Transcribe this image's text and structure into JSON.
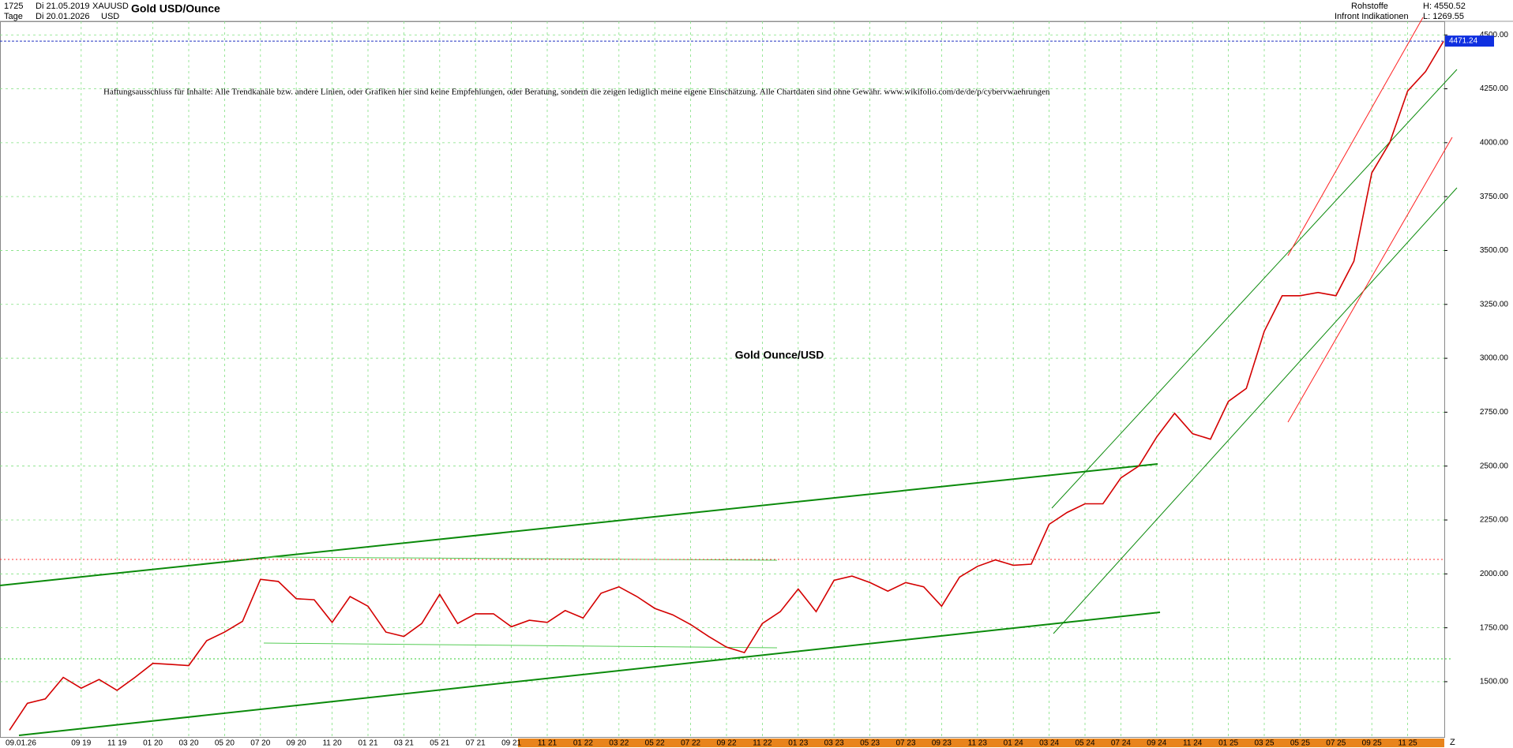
{
  "header": {
    "bars": "1725",
    "start": "Di 21.05.2019",
    "symbol": "XAUUSD",
    "period": "Tage",
    "end": "Di 20.01.2026",
    "currency": "USD",
    "title": "Gold USD/Ounce",
    "group": "Rohstoffe",
    "source": "Infront Indikationen",
    "high": "H: 4550.52",
    "low": "L: 1269.55"
  },
  "chart_data": {
    "type": "line",
    "title": "Gold Ounce/USD",
    "annotation": "Haftungsausschluss für Inhalte: Alle Trendkanäle bzw. andere Linien, oder Grafiken hier sind keine Empfehlungen, oder Beratung, sondern die zeigen lediglich meine eigene Einschätzung. Alle Chartdaten sind ohne Gewähr.  www.wikifolio.com/de/de/p/cybervwaehrungen",
    "cursor_label": "09.01.26",
    "corner_label": "Z",
    "last_price": 4471.24,
    "last_price_label": "4471.24",
    "categories": [
      null,
      null,
      null,
      null,
      "09 19",
      null,
      "11 19",
      null,
      "01 20",
      null,
      "03 20",
      null,
      "05 20",
      null,
      "07 20",
      null,
      "09 20",
      null,
      "11 20",
      null,
      "01 21",
      null,
      "03 21",
      null,
      "05 21",
      null,
      "07 21",
      null,
      "09 21",
      null,
      "11 21",
      null,
      "01 22",
      null,
      "03 22",
      null,
      "05 22",
      null,
      "07 22",
      null,
      "09 22",
      null,
      "11 22",
      null,
      "01 23",
      null,
      "03 23",
      null,
      "05 23",
      null,
      "07 23",
      null,
      "09 23",
      null,
      "11 23",
      null,
      "01 24",
      null,
      "03 24",
      null,
      "05 24",
      null,
      "07 24",
      null,
      "09 24",
      null,
      "11 24",
      null,
      "01 25",
      null,
      "03 25",
      null,
      "05 25",
      null,
      "07 25",
      null,
      "09 25",
      null,
      "11 25",
      null,
      null
    ],
    "series": [
      {
        "name": "XAUUSD",
        "color": "#d40000",
        "values": [
          1275,
          1400,
          1420,
          1520,
          1470,
          1510,
          1460,
          1520,
          1585,
          1580,
          1575,
          1690,
          1730,
          1780,
          1975,
          1965,
          1885,
          1880,
          1775,
          1895,
          1850,
          1730,
          1710,
          1770,
          1905,
          1770,
          1815,
          1815,
          1755,
          1785,
          1775,
          1830,
          1795,
          1910,
          1940,
          1895,
          1840,
          1810,
          1765,
          1710,
          1660,
          1635,
          1770,
          1825,
          1930,
          1825,
          1970,
          1990,
          1960,
          1920,
          1960,
          1940,
          1850,
          1985,
          2035,
          2065,
          2040,
          2045,
          2230,
          2285,
          2325,
          2325,
          2445,
          2500,
          2635,
          2745,
          2650,
          2625,
          2800,
          2860,
          3125,
          3290,
          3290,
          3305,
          3290,
          3450,
          3860,
          4000,
          4240,
          4330,
          4470
        ]
      }
    ],
    "ylim": [
      1240,
      4563
    ],
    "yticks": [
      {
        "value": 1500,
        "label": "1500.00"
      },
      {
        "value": 1750,
        "label": "1750.00"
      },
      {
        "value": 2000,
        "label": "2000.00"
      },
      {
        "value": 2250,
        "label": "2250.00"
      },
      {
        "value": 2500,
        "label": "2500.00"
      },
      {
        "value": 2750,
        "label": "2750.00"
      },
      {
        "value": 3000,
        "label": "3000.00"
      },
      {
        "value": 3250,
        "label": "3250.00"
      },
      {
        "value": 3500,
        "label": "3500.00"
      },
      {
        "value": 3750,
        "label": "3750.00"
      },
      {
        "value": 4000,
        "label": "4000.00"
      },
      {
        "value": 4250,
        "label": "4250.00"
      },
      {
        "value": 4500,
        "label": "4500.00"
      }
    ],
    "grid": true
  }
}
